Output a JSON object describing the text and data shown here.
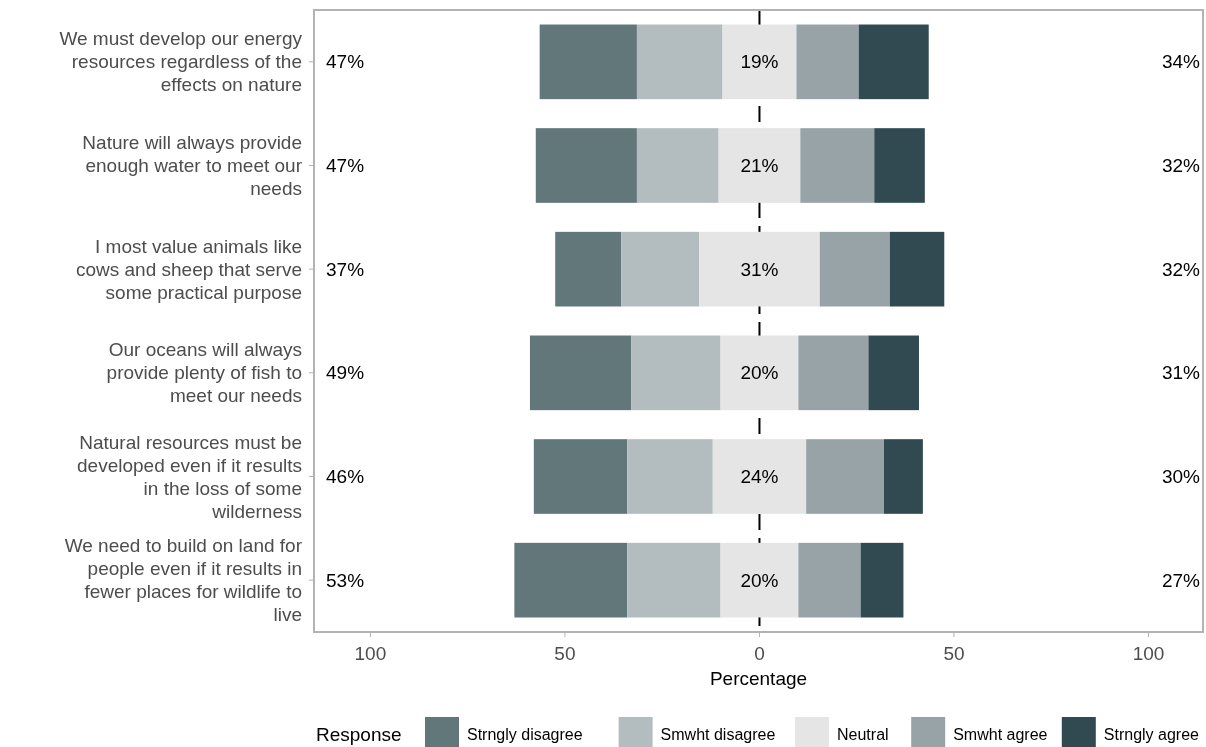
{
  "chart_data": {
    "type": "bar",
    "orientation": "horizontal",
    "xlabel": "Percentage",
    "legend_title": "Response",
    "legend": "bottom",
    "grid": false,
    "categories": [
      "We must develop our energy resources regardless of the effects on nature",
      "Nature will always provide enough water to meet our needs",
      "I most value animals like cows and sheep that serve some practical purpose",
      "Our oceans will always provide plenty of fish to meet our needs",
      "Natural resources must be developed even if it results in the loss of some wilderness",
      "We need to build on land for people even if it results in fewer places for wildlife to live"
    ],
    "xlim": [
      -114.5,
      114
    ],
    "xticks": [
      {
        "value": -100,
        "label": "100"
      },
      {
        "value": -50,
        "label": "50"
      },
      0,
      50,
      100
    ],
    "series": [
      {
        "name": "Strngly disagree",
        "color": "#62777a",
        "values": [
          25,
          26,
          17,
          26,
          24,
          29
        ],
        "base": [
          -56.5,
          -57.5,
          -52.5,
          -59,
          -58,
          -63
        ]
      },
      {
        "name": "Smwht disagree",
        "color": "#b3bcbe",
        "values": [
          22,
          21,
          20,
          23,
          22,
          24
        ],
        "base": [
          -31.5,
          -31.5,
          -35.5,
          -33,
          -34,
          -34
        ]
      },
      {
        "name": "Neutral",
        "color": "#e5e5e5",
        "values": [
          19,
          21,
          31,
          20,
          24,
          20
        ],
        "base": [
          -9.5,
          -10.5,
          -15.5,
          -10,
          -12,
          -10
        ],
        "value_labels": [
          "19%",
          "21%",
          "31%",
          "20%",
          "24%",
          "20%"
        ]
      },
      {
        "name": "Smwht agree",
        "color": "#98a3a7",
        "values": [
          16,
          19,
          18,
          18,
          20,
          16
        ],
        "base": [
          9.5,
          10.5,
          15.5,
          10,
          12,
          10
        ]
      },
      {
        "name": "Strngly agree",
        "color": "#314a52",
        "values": [
          18,
          13,
          14,
          13,
          10,
          11
        ],
        "base": [
          25.5,
          29.5,
          33.5,
          28,
          32,
          26
        ]
      }
    ],
    "ref_lines": [
      {
        "axis": "x",
        "value": 0,
        "color": "#000000",
        "line_style": "dashed"
      }
    ],
    "annotations": [
      "47%",
      "34%",
      "47%",
      "32%",
      "37%",
      "32%",
      "49%",
      "31%",
      "46%",
      "30%",
      "53%",
      "27%"
    ]
  }
}
